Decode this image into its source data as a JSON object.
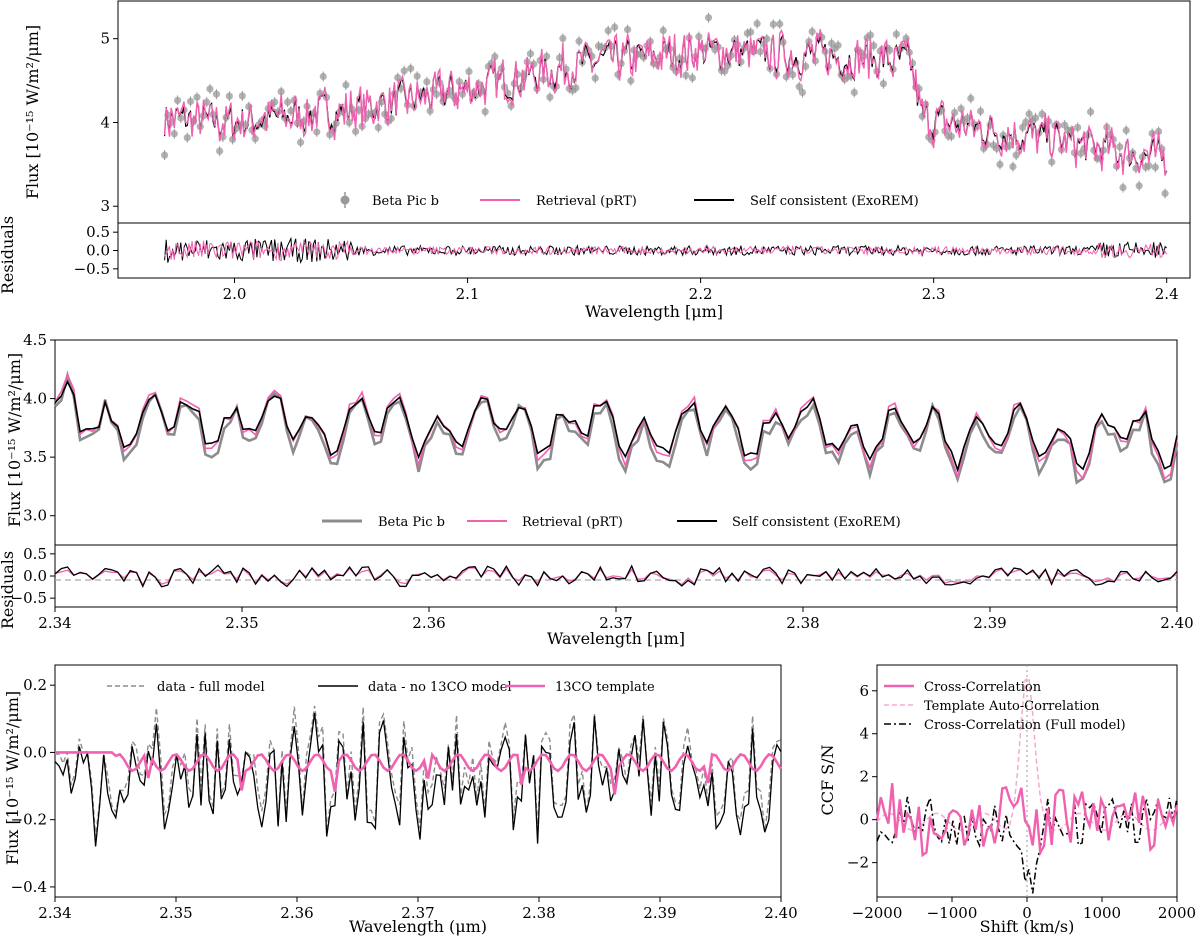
{
  "chart_data": [
    {
      "type": "line",
      "ylabel": "Flux [10⁻¹⁵ W/m²/μm]",
      "xlim": [
        1.95,
        2.41
      ],
      "ylim": [
        2.8,
        5.45
      ],
      "yticks": [
        "3",
        "4",
        "5"
      ],
      "series": [
        {
          "name": "Beta Pic b",
          "color": "#999999",
          "style": "points with error bars"
        },
        {
          "name": "Retrieval (pRT)",
          "color": "#f062b0",
          "style": "line"
        },
        {
          "name": "Self consistent (ExoREM)",
          "color": "#000000",
          "style": "line"
        }
      ],
      "continuum_x": [
        1.97,
        2.0,
        2.05,
        2.1,
        2.15,
        2.2,
        2.25,
        2.29,
        2.295,
        2.35,
        2.4
      ],
      "continuum_y": [
        4.05,
        4.0,
        4.15,
        4.4,
        4.7,
        4.85,
        4.8,
        4.72,
        4.05,
        3.8,
        3.55
      ],
      "legend": "lower center"
    },
    {
      "type": "line",
      "ylabel": "Residuals",
      "xlabel": "Wavelength [μm]",
      "xlim": [
        1.95,
        2.41
      ],
      "ylim": [
        -0.75,
        0.75
      ],
      "xticks": [
        "2.0",
        "2.1",
        "2.2",
        "2.3",
        "2.4"
      ],
      "yticks": [
        "0.5",
        "0.0",
        "−0.5"
      ],
      "series": [
        {
          "name": "Retrieval (pRT)",
          "color": "#f062b0"
        },
        {
          "name": "Self consistent (ExoREM)",
          "color": "#000000"
        }
      ]
    },
    {
      "type": "line",
      "ylabel": "Flux [10⁻¹⁵ W/m²/μm]",
      "xlim": [
        2.34,
        2.4
      ],
      "ylim": [
        2.75,
        4.5
      ],
      "yticks": [
        "4.5",
        "4.0",
        "3.5",
        "3.0"
      ],
      "series": [
        {
          "name": "Beta Pic b",
          "color": "#8c8c8c"
        },
        {
          "name": "Retrieval (pRT)",
          "color": "#f062b0"
        },
        {
          "name": "Self consistent (ExoREM)",
          "color": "#000000"
        }
      ],
      "legend": "lower center"
    },
    {
      "type": "line",
      "ylabel": "Residuals",
      "xlabel": "Wavelength [μm]",
      "xlim": [
        2.34,
        2.4
      ],
      "ylim": [
        -0.7,
        0.7
      ],
      "xticks": [
        "2.34",
        "2.35",
        "2.36",
        "2.37",
        "2.38",
        "2.39",
        "2.40"
      ],
      "yticks": [
        "0.5",
        "0.0",
        "−0.5"
      ],
      "reference_line": 0.0
    },
    {
      "type": "line",
      "ylabel": "Flux [10⁻¹⁵ W/m²/μm]",
      "xlabel": "Wavelength (μm)",
      "xlim": [
        2.34,
        2.4
      ],
      "ylim": [
        -0.43,
        0.26
      ],
      "xticks": [
        "2.34",
        "2.35",
        "2.36",
        "2.37",
        "2.38",
        "2.39",
        "2.40"
      ],
      "yticks": [
        "0.2",
        "0.0",
        "−0.2",
        "−0.4"
      ],
      "series": [
        {
          "name": "data - full model",
          "color": "#8c8c8c",
          "style": "dashed"
        },
        {
          "name": "data - no 13CO model",
          "color": "#000000",
          "style": "solid"
        },
        {
          "name": "13CO template",
          "color": "#f062b0",
          "style": "solid"
        }
      ],
      "legend": "upper center"
    },
    {
      "type": "line",
      "ylabel": "CCF S/N",
      "xlabel": "Shift (km/s)",
      "xlim": [
        -2000,
        2000
      ],
      "ylim": [
        -3.6,
        7.2
      ],
      "xticks": [
        "−2000",
        "−1000",
        "0",
        "1000",
        "2000"
      ],
      "yticks": [
        "6",
        "4",
        "2",
        "0",
        "−2"
      ],
      "series": [
        {
          "name": "Cross-Correlation",
          "color": "#f062b0",
          "style": "solid"
        },
        {
          "name": "Template Auto-Correlation",
          "color": "#f7a8d2",
          "style": "dashed"
        },
        {
          "name": "Cross-Correlation (Full model)",
          "color": "#000000",
          "style": "dashdot"
        }
      ],
      "ccf_peak": {
        "shift": 0,
        "template_autocorr": 6.6,
        "full_model": -3.3
      },
      "legend": "upper left"
    }
  ],
  "panels": {
    "top": {
      "ylabel": "Flux [10⁻¹⁵ W/m²/μm]",
      "res_label": "Residuals",
      "xlabel": "Wavelength [μm]",
      "legend": [
        "Beta Pic b",
        "Retrieval (pRT)",
        "Self consistent (ExoREM)"
      ]
    },
    "mid": {
      "ylabel": "Flux [10⁻¹⁵ W/m²/μm]",
      "res_label": "Residuals",
      "xlabel": "Wavelength [μm]",
      "legend": [
        "Beta Pic b",
        "Retrieval (pRT)",
        "Self consistent (ExoREM)"
      ]
    },
    "bl": {
      "ylabel": "Flux [10⁻¹⁵ W/m²/μm]",
      "xlabel": "Wavelength (μm)",
      "legend": [
        "data - full model",
        "data - no 13CO model",
        "13CO template"
      ]
    },
    "br": {
      "ylabel": "CCF S/N",
      "xlabel": "Shift (km/s)",
      "legend": [
        "Cross-Correlation",
        "Template Auto-Correlation",
        "Cross-Correlation (Full model)"
      ]
    }
  },
  "colors": {
    "pink": "#f062b0",
    "lightpink": "#f7a8d2",
    "gray": "#999999",
    "black": "#000000"
  }
}
